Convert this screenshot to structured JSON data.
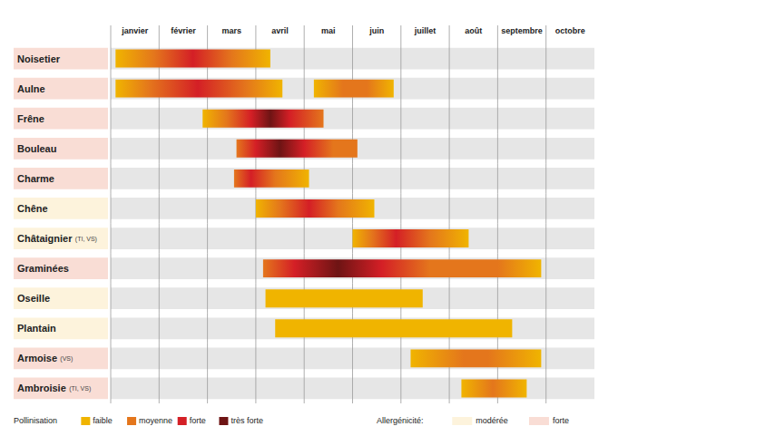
{
  "chart_data": {
    "type": "gantt",
    "months": [
      "janvier",
      "février",
      "mars",
      "avril",
      "mai",
      "juin",
      "juillet",
      "août",
      "septembre",
      "octobre"
    ],
    "xlim": [
      0,
      10
    ],
    "legend_title": "Pollinisation",
    "levels": [
      {
        "name": "faible",
        "color": "#f0b400"
      },
      {
        "name": "moyenne",
        "color": "#e4761c"
      },
      {
        "name": "forte",
        "color": "#d41f26"
      },
      {
        "name": "très forte",
        "color": "#6e1414"
      }
    ],
    "allergenicity_title": "Allergénicité:",
    "allergenicity": [
      {
        "name": "modérée",
        "color": "#fdf3dc"
      },
      {
        "name": "forte",
        "color": "#f9ddd5"
      }
    ],
    "series": [
      {
        "name": "Noisetier",
        "allergenicity": "forte",
        "periods": [
          {
            "start": 0.1,
            "end": 3.3,
            "intensity": [
              [
                0.1,
                "faible"
              ],
              [
                0.9,
                "moyenne"
              ],
              [
                1.7,
                "forte"
              ],
              [
                2.5,
                "moyenne"
              ],
              [
                3.3,
                "faible"
              ]
            ]
          }
        ]
      },
      {
        "name": "Aulne",
        "allergenicity": "forte",
        "periods": [
          {
            "start": 0.1,
            "end": 3.55,
            "intensity": [
              [
                0.1,
                "faible"
              ],
              [
                0.8,
                "moyenne"
              ],
              [
                1.8,
                "forte"
              ],
              [
                2.8,
                "moyenne"
              ],
              [
                3.55,
                "faible"
              ]
            ]
          },
          {
            "start": 4.2,
            "end": 5.85,
            "intensity": [
              [
                4.2,
                "faible"
              ],
              [
                4.8,
                "moyenne"
              ],
              [
                5.3,
                "moyenne"
              ],
              [
                5.85,
                "faible"
              ]
            ]
          }
        ]
      },
      {
        "name": "Frêne",
        "allergenicity": "forte",
        "periods": [
          {
            "start": 1.9,
            "end": 4.4,
            "intensity": [
              [
                1.9,
                "faible"
              ],
              [
                2.4,
                "moyenne"
              ],
              [
                2.9,
                "forte"
              ],
              [
                3.3,
                "très forte"
              ],
              [
                3.7,
                "forte"
              ],
              [
                4.4,
                "moyenne"
              ]
            ]
          }
        ]
      },
      {
        "name": "Bouleau",
        "allergenicity": "forte",
        "periods": [
          {
            "start": 2.6,
            "end": 5.1,
            "intensity": [
              [
                2.6,
                "moyenne"
              ],
              [
                3.0,
                "forte"
              ],
              [
                3.5,
                "très forte"
              ],
              [
                4.0,
                "forte"
              ],
              [
                4.6,
                "moyenne"
              ],
              [
                5.1,
                "moyenne"
              ]
            ]
          }
        ]
      },
      {
        "name": "Charme",
        "allergenicity": "forte",
        "periods": [
          {
            "start": 2.55,
            "end": 4.1,
            "intensity": [
              [
                2.55,
                "moyenne"
              ],
              [
                2.9,
                "forte"
              ],
              [
                3.4,
                "moyenne"
              ],
              [
                4.1,
                "faible"
              ]
            ]
          }
        ]
      },
      {
        "name": "Chêne",
        "allergenicity": "modérée",
        "periods": [
          {
            "start": 3.0,
            "end": 5.45,
            "intensity": [
              [
                3.0,
                "faible"
              ],
              [
                3.5,
                "moyenne"
              ],
              [
                4.1,
                "forte"
              ],
              [
                4.7,
                "moyenne"
              ],
              [
                5.45,
                "faible"
              ]
            ]
          }
        ]
      },
      {
        "name": "Châtaignier",
        "note": "(TI, VS)",
        "allergenicity": "modérée",
        "periods": [
          {
            "start": 5.0,
            "end": 7.4,
            "intensity": [
              [
                5.0,
                "faible"
              ],
              [
                5.4,
                "moyenne"
              ],
              [
                5.9,
                "forte"
              ],
              [
                6.6,
                "moyenne"
              ],
              [
                7.4,
                "faible"
              ]
            ]
          }
        ]
      },
      {
        "name": "Graminées",
        "allergenicity": "forte",
        "periods": [
          {
            "start": 3.15,
            "end": 8.9,
            "intensity": [
              [
                3.15,
                "moyenne"
              ],
              [
                3.8,
                "forte"
              ],
              [
                4.7,
                "très forte"
              ],
              [
                5.6,
                "forte"
              ],
              [
                6.6,
                "moyenne"
              ],
              [
                8.0,
                "moyenne"
              ],
              [
                8.9,
                "faible"
              ]
            ]
          }
        ]
      },
      {
        "name": "Oseille",
        "allergenicity": "modérée",
        "periods": [
          {
            "start": 3.2,
            "end": 6.45,
            "intensity": [
              [
                3.2,
                "faible"
              ],
              [
                6.45,
                "faible"
              ]
            ]
          }
        ]
      },
      {
        "name": "Plantain",
        "allergenicity": "modérée",
        "periods": [
          {
            "start": 3.4,
            "end": 8.3,
            "intensity": [
              [
                3.4,
                "faible"
              ],
              [
                8.3,
                "faible"
              ]
            ]
          }
        ]
      },
      {
        "name": "Armoise",
        "note": "(VS)",
        "allergenicity": "forte",
        "periods": [
          {
            "start": 6.2,
            "end": 8.9,
            "intensity": [
              [
                6.2,
                "faible"
              ],
              [
                7.3,
                "moyenne"
              ],
              [
                7.8,
                "moyenne"
              ],
              [
                8.9,
                "faible"
              ]
            ]
          }
        ]
      },
      {
        "name": "Ambroisie",
        "note": "(TI, VS)",
        "allergenicity": "forte",
        "periods": [
          {
            "start": 7.25,
            "end": 8.6,
            "intensity": [
              [
                7.25,
                "faible"
              ],
              [
                7.9,
                "moyenne"
              ],
              [
                8.6,
                "faible"
              ]
            ]
          }
        ]
      }
    ]
  }
}
